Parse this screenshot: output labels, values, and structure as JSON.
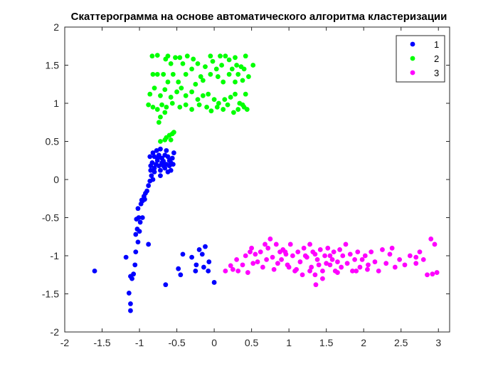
{
  "chart_data": {
    "type": "scatter",
    "title": "Скаттерограмма на основе автоматического алгоритма кластеризации",
    "xlabel": "",
    "ylabel": "",
    "xlim": [
      -2,
      3.15
    ],
    "ylim": [
      -2,
      2
    ],
    "xticks": [
      -2,
      -1.5,
      -1,
      -0.5,
      0,
      0.5,
      1,
      1.5,
      2,
      2.5,
      3
    ],
    "yticks": [
      -2,
      -1.5,
      -1,
      -0.5,
      0,
      0.5,
      1,
      1.5,
      2
    ],
    "xtick_labels": [
      "-2",
      "-1.5",
      "-1",
      "-0.5",
      "0",
      "0.5",
      "1",
      "1.5",
      "2",
      "2.5",
      "3"
    ],
    "ytick_labels": [
      "-2",
      "-1.5",
      "-1",
      "-0.5",
      "0",
      "0.5",
      "1",
      "1.5",
      "2"
    ],
    "grid": false,
    "legend_position": "top-right",
    "series": [
      {
        "name": "1",
        "color": "#0000ff",
        "points": [
          [
            -1.6,
            -1.2
          ],
          [
            -1.18,
            -1.02
          ],
          [
            -1.12,
            -1.27
          ],
          [
            -1.14,
            -1.49
          ],
          [
            -1.12,
            -1.63
          ],
          [
            -1.12,
            -1.72
          ],
          [
            -1.1,
            -1.3
          ],
          [
            -1.08,
            -1.24
          ],
          [
            -1.06,
            -1.12
          ],
          [
            -1.05,
            -0.95
          ],
          [
            -1.05,
            -0.72
          ],
          [
            -1.02,
            -0.82
          ],
          [
            -1.03,
            -0.65
          ],
          [
            -1.0,
            -0.68
          ],
          [
            -1.04,
            -0.52
          ],
          [
            -1.01,
            -0.5
          ],
          [
            -0.96,
            -0.5
          ],
          [
            -0.99,
            -0.56
          ],
          [
            -1.02,
            -0.38
          ],
          [
            -0.98,
            -0.32
          ],
          [
            -0.96,
            -0.28
          ],
          [
            -0.94,
            -0.22
          ],
          [
            -0.92,
            -0.18
          ],
          [
            -0.9,
            -0.15
          ],
          [
            -0.97,
            -0.27
          ],
          [
            -0.93,
            -0.26
          ],
          [
            -0.88,
            -0.08
          ],
          [
            -0.86,
            -0.02
          ],
          [
            -0.84,
            0.05
          ],
          [
            -0.82,
            0.0
          ],
          [
            -0.85,
            0.12
          ],
          [
            -0.85,
            0.18
          ],
          [
            -0.83,
            0.22
          ],
          [
            -0.86,
            0.3
          ],
          [
            -0.82,
            0.35
          ],
          [
            -0.8,
            0.15
          ],
          [
            -0.78,
            0.2
          ],
          [
            -0.76,
            0.25
          ],
          [
            -0.8,
            0.3
          ],
          [
            -0.77,
            0.38
          ],
          [
            -0.74,
            0.32
          ],
          [
            -0.72,
            0.4
          ],
          [
            -0.7,
            0.22
          ],
          [
            -0.68,
            0.18
          ],
          [
            -0.66,
            0.15
          ],
          [
            -0.7,
            0.28
          ],
          [
            -0.66,
            0.32
          ],
          [
            -0.64,
            0.38
          ],
          [
            -0.62,
            0.3
          ],
          [
            -0.6,
            0.25
          ],
          [
            -0.6,
            0.18
          ],
          [
            -0.58,
            0.22
          ],
          [
            -0.56,
            0.28
          ],
          [
            -0.54,
            0.35
          ],
          [
            -0.55,
            0.2
          ],
          [
            -0.58,
            0.12
          ],
          [
            -0.62,
            0.1
          ],
          [
            -0.72,
            0.12
          ],
          [
            -0.74,
            0.18
          ],
          [
            -0.8,
            0.1
          ],
          [
            -0.68,
            0.24
          ],
          [
            -0.64,
            0.2
          ],
          [
            -0.76,
            0.28
          ],
          [
            -0.72,
            0.05
          ],
          [
            -0.88,
            -0.85
          ],
          [
            -0.65,
            -1.38
          ],
          [
            -0.48,
            -1.17
          ],
          [
            -0.45,
            -1.25
          ],
          [
            -0.42,
            -0.98
          ],
          [
            -0.3,
            -1.02
          ],
          [
            -0.25,
            -1.2
          ],
          [
            -0.24,
            -1.12
          ],
          [
            -0.2,
            -0.92
          ],
          [
            -0.16,
            -0.98
          ],
          [
            -0.14,
            -1.15
          ],
          [
            -0.12,
            -0.88
          ],
          [
            -0.08,
            -1.2
          ],
          [
            -0.07,
            -1.08
          ],
          [
            0.0,
            -1.35
          ]
        ]
      },
      {
        "name": "2",
        "color": "#00ff00",
        "points": [
          [
            -0.83,
            1.62
          ],
          [
            -0.76,
            1.63
          ],
          [
            -0.65,
            1.58
          ],
          [
            -0.62,
            1.62
          ],
          [
            -0.58,
            1.52
          ],
          [
            -0.52,
            1.6
          ],
          [
            -0.46,
            1.6
          ],
          [
            -0.42,
            1.52
          ],
          [
            -0.36,
            1.62
          ],
          [
            -0.3,
            1.45
          ],
          [
            -0.28,
            1.58
          ],
          [
            -0.22,
            1.52
          ],
          [
            -0.18,
            1.35
          ],
          [
            -0.12,
            1.48
          ],
          [
            -0.05,
            1.62
          ],
          [
            -0.02,
            1.55
          ],
          [
            0.03,
            1.45
          ],
          [
            0.08,
            1.62
          ],
          [
            0.1,
            1.5
          ],
          [
            0.15,
            1.62
          ],
          [
            0.2,
            1.57
          ],
          [
            0.24,
            1.45
          ],
          [
            0.28,
            1.6
          ],
          [
            0.3,
            1.5
          ],
          [
            0.32,
            1.38
          ],
          [
            0.36,
            1.48
          ],
          [
            0.4,
            1.45
          ],
          [
            0.42,
            1.62
          ],
          [
            0.46,
            1.35
          ],
          [
            0.52,
            1.5
          ],
          [
            -0.82,
            1.38
          ],
          [
            -0.76,
            1.38
          ],
          [
            -0.68,
            1.38
          ],
          [
            -0.62,
            1.28
          ],
          [
            -0.55,
            1.38
          ],
          [
            -0.48,
            1.28
          ],
          [
            -0.38,
            1.38
          ],
          [
            -0.25,
            1.25
          ],
          [
            -0.15,
            1.3
          ],
          [
            -0.05,
            1.38
          ],
          [
            0.05,
            1.35
          ],
          [
            0.12,
            1.28
          ],
          [
            0.2,
            1.38
          ],
          [
            0.28,
            1.28
          ],
          [
            0.38,
            1.3
          ],
          [
            0.42,
            1.12
          ],
          [
            -0.86,
            1.12
          ],
          [
            -0.8,
            1.2
          ],
          [
            -0.72,
            1.1
          ],
          [
            -0.66,
            1.18
          ],
          [
            -0.58,
            1.08
          ],
          [
            -0.5,
            1.15
          ],
          [
            -0.44,
            1.2
          ],
          [
            -0.38,
            1.1
          ],
          [
            -0.3,
            1.15
          ],
          [
            -0.22,
            1.05
          ],
          [
            -0.15,
            1.1
          ],
          [
            -0.08,
            1.12
          ],
          [
            0.0,
            1.05
          ],
          [
            0.06,
            1.0
          ],
          [
            0.14,
            1.05
          ],
          [
            0.22,
            1.08
          ],
          [
            0.28,
            1.12
          ],
          [
            0.34,
            1.0
          ],
          [
            0.4,
            0.95
          ],
          [
            -0.88,
            0.98
          ],
          [
            -0.82,
            0.95
          ],
          [
            -0.76,
            0.92
          ],
          [
            -0.7,
            0.98
          ],
          [
            -0.64,
            0.95
          ],
          [
            -0.56,
            1.0
          ],
          [
            -0.46,
            0.95
          ],
          [
            -0.38,
            0.98
          ],
          [
            -0.3,
            0.92
          ],
          [
            -0.2,
            0.98
          ],
          [
            -0.1,
            0.95
          ],
          [
            -0.04,
            0.9
          ],
          [
            0.04,
            0.95
          ],
          [
            0.12,
            0.92
          ],
          [
            0.18,
            0.98
          ],
          [
            0.26,
            0.88
          ],
          [
            0.32,
            0.92
          ],
          [
            0.38,
            0.98
          ],
          [
            0.44,
            0.92
          ],
          [
            -0.74,
            0.75
          ],
          [
            -0.72,
            0.82
          ],
          [
            -0.66,
            0.88
          ],
          [
            -0.72,
            0.5
          ],
          [
            -0.66,
            0.52
          ],
          [
            -0.64,
            0.55
          ],
          [
            -0.6,
            0.58
          ],
          [
            -0.58,
            0.52
          ],
          [
            -0.56,
            0.6
          ],
          [
            -0.54,
            0.62
          ]
        ]
      },
      {
        "name": "3",
        "color": "#ff00ff",
        "points": [
          [
            0.15,
            -1.2
          ],
          [
            0.22,
            -1.13
          ],
          [
            0.25,
            -1.18
          ],
          [
            0.3,
            -1.05
          ],
          [
            0.32,
            -1.2
          ],
          [
            0.38,
            -1.12
          ],
          [
            0.42,
            -1.0
          ],
          [
            0.45,
            -1.22
          ],
          [
            0.52,
            -1.1
          ],
          [
            0.55,
            -0.98
          ],
          [
            0.58,
            -1.08
          ],
          [
            0.62,
            -0.95
          ],
          [
            0.65,
            -1.15
          ],
          [
            0.7,
            -1.05
          ],
          [
            0.72,
            -0.9
          ],
          [
            0.75,
            -0.78
          ],
          [
            0.78,
            -1.02
          ],
          [
            0.8,
            -1.18
          ],
          [
            0.83,
            -0.85
          ],
          [
            0.85,
            -1.1
          ],
          [
            0.88,
            -0.95
          ],
          [
            0.9,
            -1.05
          ],
          [
            0.92,
            -0.92
          ],
          [
            0.96,
            -0.98
          ],
          [
            0.98,
            -1.12
          ],
          [
            1.02,
            -0.85
          ],
          [
            1.05,
            -1.0
          ],
          [
            1.08,
            -1.2
          ],
          [
            1.12,
            -0.95
          ],
          [
            1.15,
            -1.08
          ],
          [
            1.18,
            -1.25
          ],
          [
            1.2,
            -0.9
          ],
          [
            1.24,
            -1.02
          ],
          [
            1.28,
            -0.85
          ],
          [
            1.3,
            -1.15
          ],
          [
            1.32,
            -0.95
          ],
          [
            1.35,
            -1.25
          ],
          [
            1.36,
            -1.38
          ],
          [
            1.38,
            -1.05
          ],
          [
            1.4,
            -1.12
          ],
          [
            1.42,
            -0.92
          ],
          [
            1.45,
            -1.2
          ],
          [
            1.48,
            -1.0
          ],
          [
            1.52,
            -0.9
          ],
          [
            1.55,
            -1.12
          ],
          [
            1.58,
            -1.05
          ],
          [
            1.6,
            -0.95
          ],
          [
            1.62,
            -1.2
          ],
          [
            1.65,
            -1.08
          ],
          [
            1.68,
            -0.92
          ],
          [
            1.7,
            -1.15
          ],
          [
            1.72,
            -1.0
          ],
          [
            1.76,
            -0.85
          ],
          [
            1.78,
            -1.1
          ],
          [
            1.82,
            -0.98
          ],
          [
            1.85,
            -1.2
          ],
          [
            1.88,
            -1.05
          ],
          [
            1.92,
            -0.95
          ],
          [
            1.95,
            -1.15
          ],
          [
            1.98,
            -1.05
          ],
          [
            2.02,
            -1.0
          ],
          [
            2.06,
            -1.12
          ],
          [
            2.1,
            -0.95
          ],
          [
            2.15,
            -1.08
          ],
          [
            2.2,
            -1.2
          ],
          [
            2.25,
            -0.92
          ],
          [
            2.3,
            -1.1
          ],
          [
            2.35,
            -0.98
          ],
          [
            2.42,
            -1.15
          ],
          [
            2.48,
            -1.05
          ],
          [
            2.55,
            -1.12
          ],
          [
            2.62,
            -1.0
          ],
          [
            2.7,
            -1.1
          ],
          [
            2.75,
            -0.95
          ],
          [
            2.8,
            -1.05
          ],
          [
            2.85,
            -1.25
          ],
          [
            2.9,
            -0.78
          ],
          [
            2.95,
            -0.85
          ],
          [
            2.92,
            -1.24
          ],
          [
            2.98,
            -1.22
          ],
          [
            0.48,
            -0.95
          ],
          [
            1.0,
            -1.15
          ],
          [
            1.22,
            -1.0
          ],
          [
            1.5,
            -1.1
          ],
          [
            1.35,
            -0.98
          ],
          [
            0.68,
            -0.85
          ],
          [
            1.9,
            -1.2
          ],
          [
            2.05,
            -1.18
          ],
          [
            2.38,
            -0.9
          ],
          [
            2.7,
            -1.02
          ],
          [
            0.5,
            -0.9
          ],
          [
            0.95,
            -0.95
          ],
          [
            1.1,
            -1.18
          ],
          [
            1.28,
            -1.2
          ],
          [
            1.55,
            -1.0
          ],
          [
            1.45,
            -1.3
          ],
          [
            1.65,
            -1.22
          ]
        ]
      }
    ]
  }
}
